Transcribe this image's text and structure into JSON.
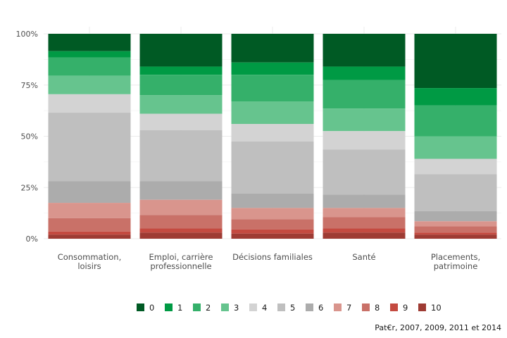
{
  "chart_data": {
    "type": "bar",
    "stacked": true,
    "normalized": true,
    "categories": [
      [
        "Consommation,",
        "loisirs"
      ],
      [
        "Emploi, carrière",
        "professionnelle"
      ],
      [
        "Décisions familiales"
      ],
      [
        "Santé"
      ],
      [
        "Placements,",
        "patrimoine"
      ]
    ],
    "ylim": [
      0,
      1
    ],
    "yticks": [
      0,
      0.25,
      0.5,
      0.75,
      1.0
    ],
    "ytick_labels": [
      "0%",
      "25%",
      "50%",
      "75%",
      "100%"
    ],
    "xlabel": "",
    "ylabel": "",
    "grid": true,
    "legend_position": "bottom",
    "series": [
      {
        "name": "0",
        "color": "#005a24",
        "values": [
          0.085,
          0.16,
          0.14,
          0.16,
          0.265
        ]
      },
      {
        "name": "1",
        "color": "#009a44",
        "values": [
          0.03,
          0.04,
          0.06,
          0.065,
          0.085
        ]
      },
      {
        "name": "2",
        "color": "#35b06a",
        "values": [
          0.09,
          0.1,
          0.13,
          0.14,
          0.15
        ]
      },
      {
        "name": "3",
        "color": "#66c48e",
        "values": [
          0.09,
          0.09,
          0.11,
          0.11,
          0.11
        ]
      },
      {
        "name": "4",
        "color": "#d3d3d3",
        "values": [
          0.09,
          0.08,
          0.085,
          0.09,
          0.075
        ]
      },
      {
        "name": "5",
        "color": "#bfbfbf",
        "values": [
          0.335,
          0.25,
          0.255,
          0.22,
          0.18
        ]
      },
      {
        "name": "6",
        "color": "#acacac",
        "values": [
          0.105,
          0.09,
          0.07,
          0.065,
          0.05
        ]
      },
      {
        "name": "7",
        "color": "#d9958d",
        "values": [
          0.075,
          0.075,
          0.055,
          0.045,
          0.025
        ]
      },
      {
        "name": "8",
        "color": "#c97168",
        "values": [
          0.065,
          0.065,
          0.05,
          0.055,
          0.03
        ]
      },
      {
        "name": "9",
        "color": "#c44a40",
        "values": [
          0.015,
          0.02,
          0.02,
          0.02,
          0.01
        ]
      },
      {
        "name": "10",
        "color": "#9e3b33",
        "values": [
          0.02,
          0.03,
          0.025,
          0.03,
          0.02
        ]
      }
    ],
    "caption": "Pat€r, 2007, 2009, 2011 et 2014"
  }
}
